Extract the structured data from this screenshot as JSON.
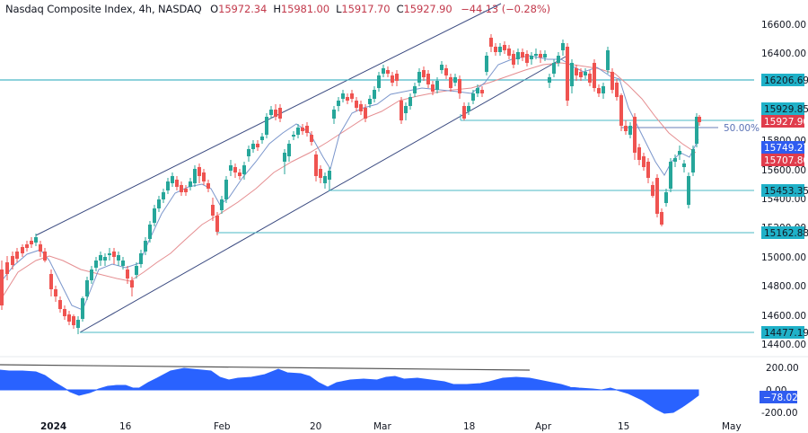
{
  "header": {
    "title": "Nasdaq Composite Index, 4h, NASDAQ",
    "open_label": "O",
    "open": "15972.34",
    "high_label": "H",
    "high": "15981.00",
    "low_label": "L",
    "low": "15917.70",
    "close_label": "C",
    "close": "15927.90",
    "change": "−44.13 (−0.28%)"
  },
  "colors": {
    "up": "#26a69a",
    "down": "#ef5350",
    "level_line": "#4bb8c6",
    "channel": "#3a4a80",
    "ma_fast": "#7b96cc",
    "ma_slow": "#e58e91",
    "oscillator": "#2962ff",
    "tag_cyan": "#1fb1c8",
    "tag_red": "#e03c4c",
    "tag_blue": "#2f5cf0"
  },
  "price_axis": {
    "ticks": [
      "16600.00",
      "16400.00",
      "15800.00",
      "15600.00",
      "15400.00",
      "15200.00",
      "15000.00",
      "14800.00",
      "14600.00",
      "14400.00"
    ]
  },
  "price_tags": [
    {
      "label": "16206.69",
      "kind": "level"
    },
    {
      "label": "15929.85",
      "kind": "level"
    },
    {
      "label": "15927.90",
      "kind": "last_price"
    },
    {
      "label": "15749.27",
      "kind": "ma_fast"
    },
    {
      "label": "15707.80",
      "kind": "ma_slow"
    },
    {
      "label": "15453.35",
      "kind": "level"
    },
    {
      "label": "15162.88",
      "kind": "level"
    },
    {
      "label": "14477.19",
      "kind": "level"
    }
  ],
  "fib_label": "50.00%",
  "oscillator_axis": {
    "ticks": [
      "200.00",
      "0.00",
      "-200.00"
    ],
    "current": "−78.02"
  },
  "time_axis": {
    "labels": [
      "2024",
      "16",
      "Feb",
      "20",
      "Mar",
      "18",
      "Apr",
      "15",
      "May"
    ]
  },
  "chart_data": {
    "type": "candlestick",
    "title": "Nasdaq Composite Index, 4h, NASDAQ",
    "xlabel": "",
    "ylabel": "",
    "ylim": [
      14400,
      16700
    ],
    "x_tick_labels": [
      "2024",
      "16",
      "Feb",
      "20",
      "Mar",
      "18",
      "Apr",
      "15",
      "May"
    ],
    "last_ohlc": {
      "open": 15972.34,
      "high": 15981.0,
      "low": 15917.7,
      "close": 15927.9,
      "change": -44.13,
      "change_pct": -0.28
    },
    "horizontal_levels": [
      16206.69,
      15929.85,
      15453.35,
      15162.88,
      14477.19
    ],
    "fib_retracement": {
      "label": "50.00%",
      "value": 15880
    },
    "moving_averages": [
      {
        "name": "fast MA",
        "value": 15749.27,
        "color": "#7b96cc"
      },
      {
        "name": "slow MA",
        "value": 15707.8,
        "color": "#e58e91"
      }
    ],
    "ascending_channel": {
      "lower_start": 14477.19,
      "upper_note": "parallel channel Jan–Apr"
    },
    "approx_price_path": [
      {
        "x": "late Dec",
        "close": 15000
      },
      {
        "x": "early Jan high",
        "close": 15150
      },
      {
        "x": "2024 low (~Jan 5)",
        "close": 14477
      },
      {
        "x": "16",
        "close": 14950
      },
      {
        "x": "late Jan",
        "close": 15600
      },
      {
        "x": "Feb",
        "close": 15450
      },
      {
        "x": "mid Feb",
        "close": 16050
      },
      {
        "x": "20 Feb",
        "close": 15500
      },
      {
        "x": "Mar",
        "close": 16250
      },
      {
        "x": "18 Mar",
        "close": 15950
      },
      {
        "x": "late Mar",
        "close": 16450
      },
      {
        "x": "Apr",
        "close": 16300
      },
      {
        "x": "15 Apr",
        "close": 16400
      },
      {
        "x": "Apr 19 low",
        "close": 15300
      },
      {
        "x": "latest",
        "close": 15927.9
      }
    ],
    "oscillator": {
      "type": "area",
      "ylim": [
        -250,
        250
      ],
      "ticks": [
        200,
        0,
        -200
      ],
      "current": -78.02,
      "approx_values": [
        140,
        140,
        130,
        60,
        -40,
        -20,
        30,
        50,
        40,
        90,
        160,
        160,
        130,
        60,
        80,
        110,
        160,
        90,
        80,
        70,
        20,
        60,
        70,
        90,
        90,
        120,
        140,
        100,
        90,
        60,
        20,
        -10,
        0,
        -30,
        -60,
        -140,
        -220,
        -160,
        -78.02
      ],
      "trendline": "descending from ~190 to ~120"
    }
  }
}
